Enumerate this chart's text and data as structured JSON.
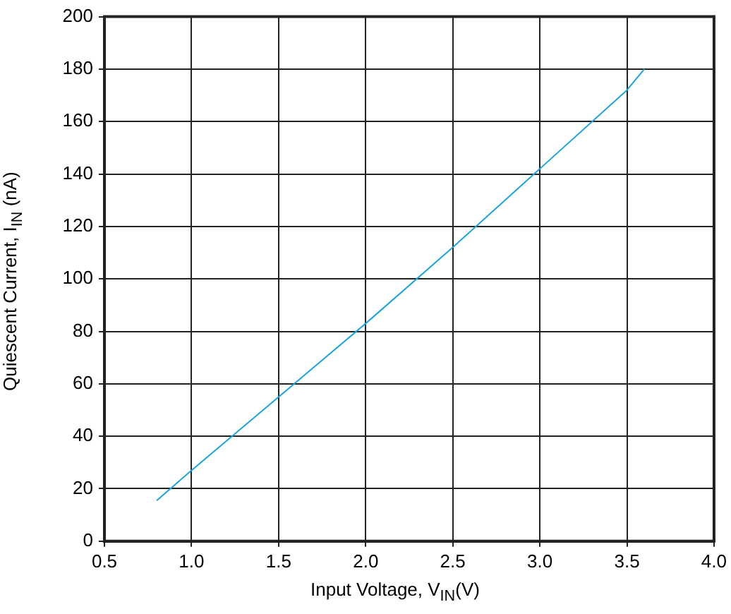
{
  "chart_data": {
    "type": "line",
    "xlabel": "Input Voltage, V$_{IN}$(V)",
    "ylabel": "Quiescent Current, I$_{IN}$ (nA)",
    "series": [
      {
        "color": "#1aa3e0",
        "x": [
          0.8,
          1.0,
          1.25,
          1.5,
          2.0,
          2.5,
          3.0,
          3.5,
          3.6
        ],
        "values": [
          15.5,
          27,
          41,
          55,
          83,
          112,
          142,
          172,
          180
        ]
      }
    ],
    "xlim": [
      0.5,
      4.0
    ],
    "xticks": [
      {
        "value": 0.5,
        "label": "0.5"
      },
      {
        "value": 1.0,
        "label": "1.0"
      },
      {
        "value": 1.5,
        "label": "1.5"
      },
      {
        "value": 2.0,
        "label": "2.0"
      },
      {
        "value": 2.5,
        "label": "2.5"
      },
      {
        "value": 3.0,
        "label": "3.0"
      },
      {
        "value": 3.5,
        "label": "3.5"
      },
      {
        "value": 4.0,
        "label": "4.0"
      }
    ],
    "ylim": [
      0,
      200
    ],
    "yticks": [
      0,
      20,
      40,
      60,
      80,
      100,
      120,
      140,
      160,
      180,
      200
    ],
    "grid": true,
    "legend": false,
    "marker": "none",
    "line_style": "solid"
  }
}
